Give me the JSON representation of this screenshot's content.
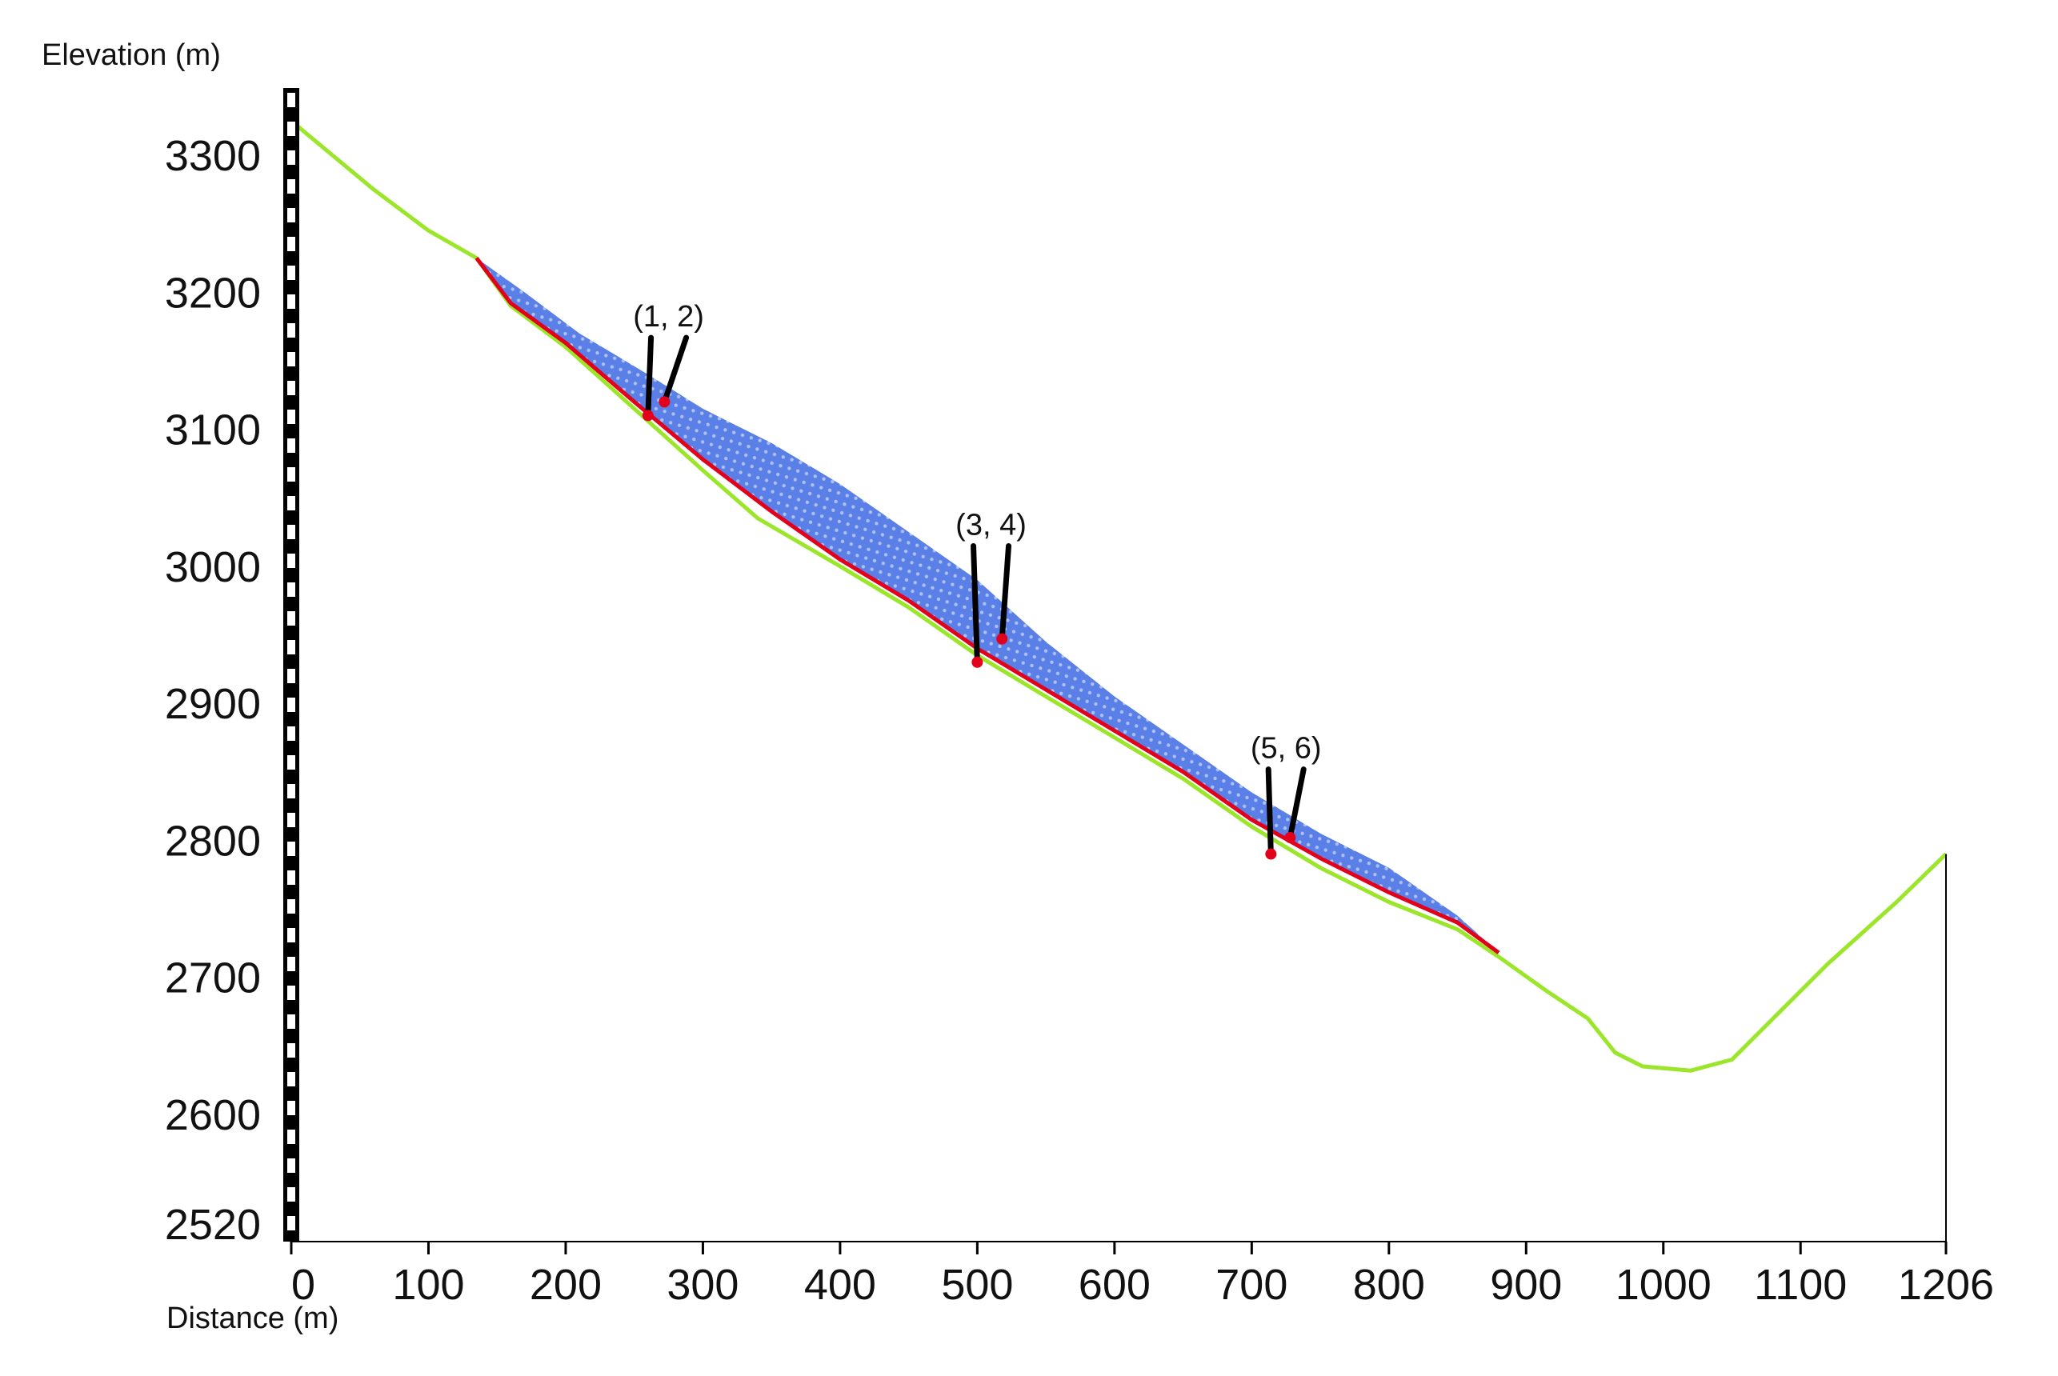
{
  "chart_data": {
    "type": "line",
    "title": "",
    "xlabel": "Distance (m)",
    "ylabel": "Elevation (m)",
    "xlim": [
      0,
      1206
    ],
    "ylim": [
      2520,
      3330
    ],
    "grid": false,
    "x_ticks": [
      {
        "value": 0,
        "label": "0"
      },
      {
        "value": 100,
        "label": "100"
      },
      {
        "value": 200,
        "label": "200"
      },
      {
        "value": 300,
        "label": "300"
      },
      {
        "value": 400,
        "label": "400"
      },
      {
        "value": 500,
        "label": "500"
      },
      {
        "value": 600,
        "label": "600"
      },
      {
        "value": 700,
        "label": "700"
      },
      {
        "value": 800,
        "label": "800"
      },
      {
        "value": 900,
        "label": "900"
      },
      {
        "value": 1000,
        "label": "1000"
      },
      {
        "value": 1100,
        "label": "1100"
      },
      {
        "value": 1206,
        "label": "1206"
      }
    ],
    "y_ticks": [
      {
        "value": 3300,
        "label": "3300"
      },
      {
        "value": 3200,
        "label": "3200"
      },
      {
        "value": 3100,
        "label": "3100"
      },
      {
        "value": 3000,
        "label": "3000"
      },
      {
        "value": 2900,
        "label": "2900"
      },
      {
        "value": 2800,
        "label": "2800"
      },
      {
        "value": 2700,
        "label": "2700"
      },
      {
        "value": 2600,
        "label": "2600"
      },
      {
        "value": 2520,
        "label": "2520"
      }
    ],
    "colors": {
      "ground": "#9be62a",
      "slip_surface": "#e3001b",
      "mass_fill": "#5a7fe6",
      "mass_texture": "#c8d6fa",
      "monitor_point": "#e3001b",
      "pointer": "#000000",
      "axis_bar": "#000000"
    },
    "ground_profile": [
      [
        0,
        3325
      ],
      [
        60,
        3275
      ],
      [
        100,
        3245
      ],
      [
        135,
        3225
      ],
      [
        160,
        3190
      ],
      [
        200,
        3160
      ],
      [
        250,
        3115
      ],
      [
        300,
        3070
      ],
      [
        340,
        3035
      ],
      [
        400,
        3000
      ],
      [
        450,
        2970
      ],
      [
        500,
        2935
      ],
      [
        550,
        2905
      ],
      [
        600,
        2875
      ],
      [
        650,
        2845
      ],
      [
        700,
        2810
      ],
      [
        750,
        2780
      ],
      [
        800,
        2755
      ],
      [
        850,
        2735
      ],
      [
        880,
        2715
      ],
      [
        915,
        2690
      ],
      [
        945,
        2670
      ],
      [
        965,
        2645
      ],
      [
        985,
        2635
      ],
      [
        1020,
        2632
      ],
      [
        1050,
        2640
      ],
      [
        1080,
        2670
      ],
      [
        1120,
        2710
      ],
      [
        1170,
        2755
      ],
      [
        1206,
        2790
      ]
    ],
    "slip_surface": [
      [
        135,
        3225
      ],
      [
        160,
        3192
      ],
      [
        200,
        3163
      ],
      [
        250,
        3120
      ],
      [
        300,
        3078
      ],
      [
        350,
        3040
      ],
      [
        400,
        3005
      ],
      [
        450,
        2975
      ],
      [
        500,
        2940
      ],
      [
        550,
        2910
      ],
      [
        600,
        2880
      ],
      [
        650,
        2850
      ],
      [
        700,
        2815
      ],
      [
        750,
        2787
      ],
      [
        800,
        2762
      ],
      [
        850,
        2740
      ],
      [
        880,
        2718
      ]
    ],
    "sliding_mass_top": [
      [
        135,
        3225
      ],
      [
        170,
        3200
      ],
      [
        210,
        3170
      ],
      [
        260,
        3140
      ],
      [
        300,
        3115
      ],
      [
        350,
        3090
      ],
      [
        400,
        3060
      ],
      [
        450,
        3025
      ],
      [
        500,
        2990
      ],
      [
        550,
        2945
      ],
      [
        600,
        2905
      ],
      [
        650,
        2870
      ],
      [
        700,
        2835
      ],
      [
        750,
        2805
      ],
      [
        800,
        2780
      ],
      [
        850,
        2745
      ],
      [
        880,
        2718
      ]
    ],
    "monitoring_points": [
      {
        "label": "(1, 2)",
        "points": [
          [
            260,
            3110
          ],
          [
            272,
            3120
          ]
        ],
        "label_at": [
          275,
          3175
        ]
      },
      {
        "label": "(3, 4)",
        "points": [
          [
            500,
            2930
          ],
          [
            518,
            2947
          ]
        ],
        "label_at": [
          510,
          3023
        ]
      },
      {
        "label": "(5, 6)",
        "points": [
          [
            714,
            2790
          ],
          [
            728,
            2802
          ]
        ],
        "label_at": [
          725,
          2860
        ]
      }
    ]
  }
}
